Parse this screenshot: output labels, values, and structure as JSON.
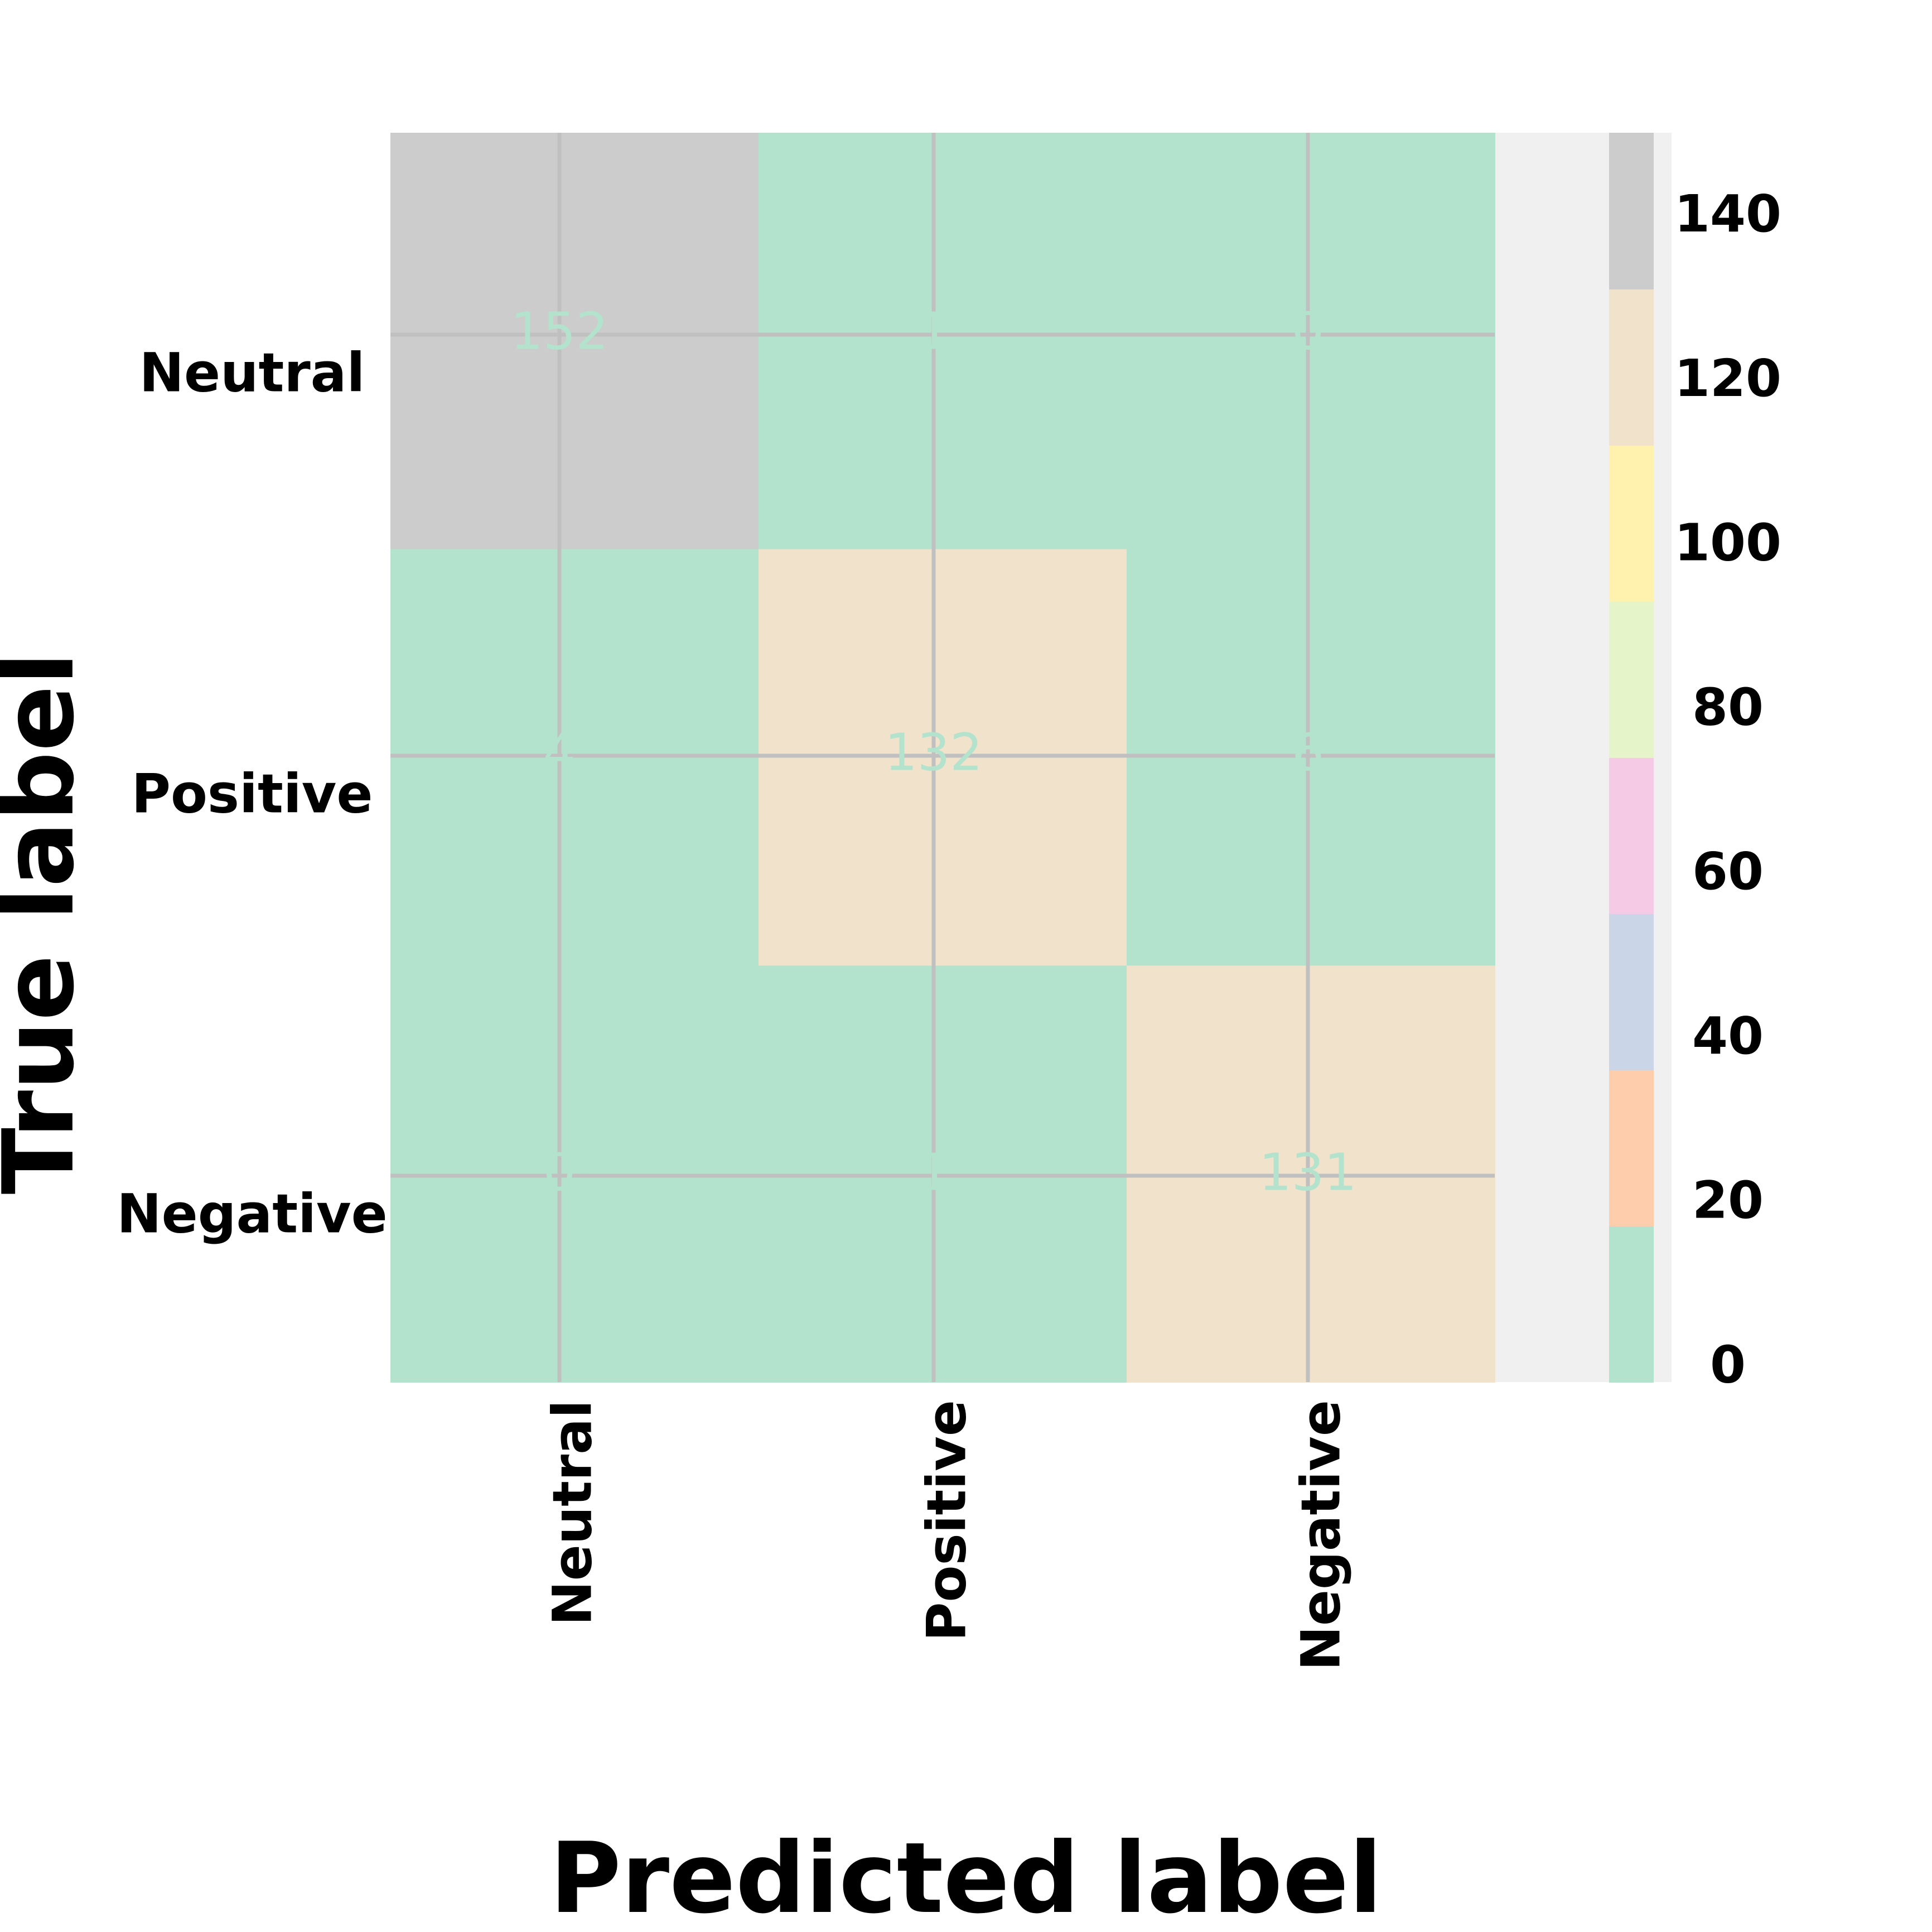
{
  "chart_data": {
    "type": "heatmap",
    "title": "",
    "xlabel": "Predicted label",
    "ylabel": "True label",
    "x_categories": [
      "Neutral",
      "Positive",
      "Negative"
    ],
    "y_categories": [
      "Neutral",
      "Positive",
      "Negative"
    ],
    "values": [
      [
        152,
        1,
        0
      ],
      [
        4,
        132,
        6
      ],
      [
        0,
        1,
        131
      ]
    ],
    "colorbar": {
      "ticks": [
        "0",
        "20",
        "40",
        "60",
        "80",
        "100",
        "120",
        "140"
      ],
      "range": [
        0,
        152
      ],
      "colors": [
        "#b3e2cd",
        "#fdcdac",
        "#cbd5e8",
        "#f4cae4",
        "#e6f5c9",
        "#fff2ae",
        "#f1e2cc",
        "#cccccc"
      ]
    },
    "grid": true,
    "cell_text_color": "#b3e2cd",
    "grid_color": "#c0c0c0"
  }
}
